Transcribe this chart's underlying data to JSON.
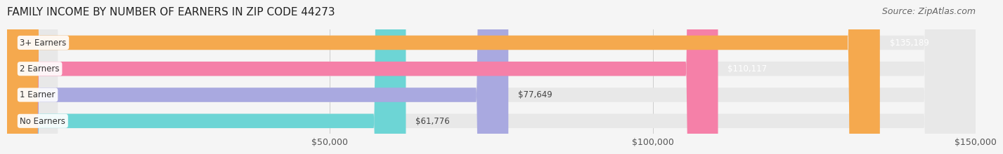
{
  "title": "FAMILY INCOME BY NUMBER OF EARNERS IN ZIP CODE 44273",
  "source": "Source: ZipAtlas.com",
  "categories": [
    "No Earners",
    "1 Earner",
    "2 Earners",
    "3+ Earners"
  ],
  "values": [
    61776,
    77649,
    110117,
    135189
  ],
  "bar_colors": [
    "#6dd5d5",
    "#a9a9e0",
    "#f580a8",
    "#f5a94e"
  ],
  "bar_labels": [
    "$61,776",
    "$77,649",
    "$110,117",
    "$135,189"
  ],
  "xlim": [
    0,
    150000
  ],
  "xticks": [
    50000,
    100000,
    150000
  ],
  "xticklabels": [
    "$50,000",
    "$100,000",
    "$150,000"
  ],
  "background_color": "#f5f5f5",
  "bar_bg_color": "#e8e8e8",
  "label_bg_color": "#ffffff",
  "title_fontsize": 11,
  "source_fontsize": 9,
  "bar_height": 0.55
}
